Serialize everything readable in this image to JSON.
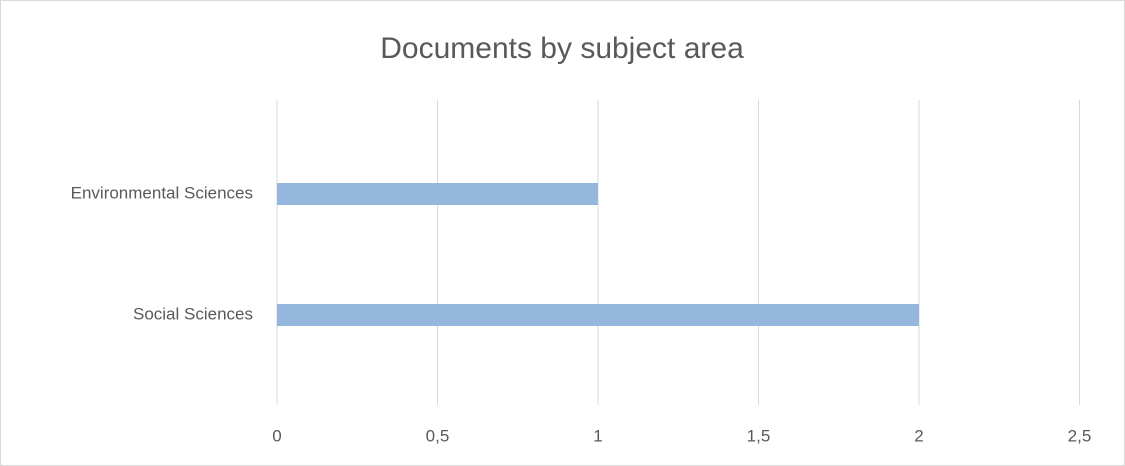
{
  "chart_data": {
    "type": "hbar",
    "title": "Documents by subject area",
    "categories": [
      "Environmental Sciences",
      "Social Sciences"
    ],
    "values": [
      1,
      2
    ],
    "color": "#95b7de",
    "xlim": [
      0,
      2.5
    ],
    "xticks": [
      0,
      {
        "value": 0.5,
        "label": "0,5"
      },
      1,
      {
        "value": 1.5,
        "label": "1,5"
      },
      2,
      {
        "value": 2.5,
        "label": "2,5"
      }
    ],
    "grid": true
  }
}
